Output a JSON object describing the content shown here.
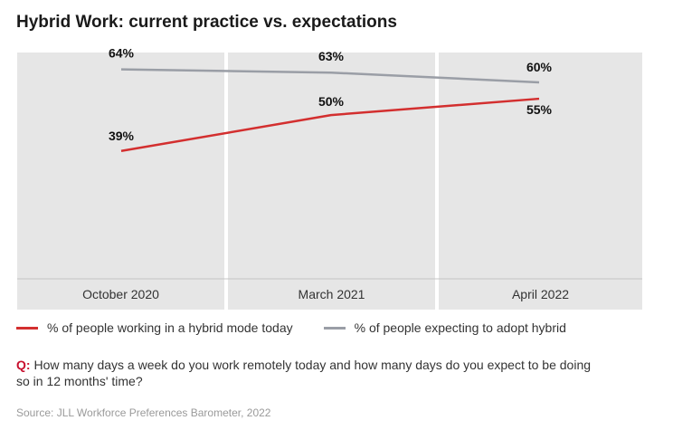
{
  "title": "Hybrid Work: current practice vs. expectations",
  "chart_data": {
    "type": "line",
    "title": "Hybrid Work: current practice vs. expectations",
    "categories": [
      "October 2020",
      "March 2021",
      "April 2022"
    ],
    "series": [
      {
        "name": "% of people working in a hybrid mode today",
        "color": "#d32f2f",
        "values": [
          39,
          50,
          55
        ],
        "labels": [
          "39%",
          "50%",
          "55%"
        ]
      },
      {
        "name": "% of people expecting to adopt hybrid",
        "color": "#9a9ea6",
        "values": [
          64,
          63,
          60
        ],
        "labels": [
          "64%",
          "63%",
          "60%"
        ]
      }
    ],
    "ylim": [
      0,
      70
    ],
    "xlabel": "",
    "ylabel": "",
    "legend": "bottom",
    "panel_color": "#e6e6e6"
  },
  "question": {
    "prefix": "Q:",
    "text": " How many days a week do you work remotely today and how many days do you expect to be doing so in 12 months' time?"
  },
  "source": "Source: JLL Workforce Preferences Barometer, 2022"
}
